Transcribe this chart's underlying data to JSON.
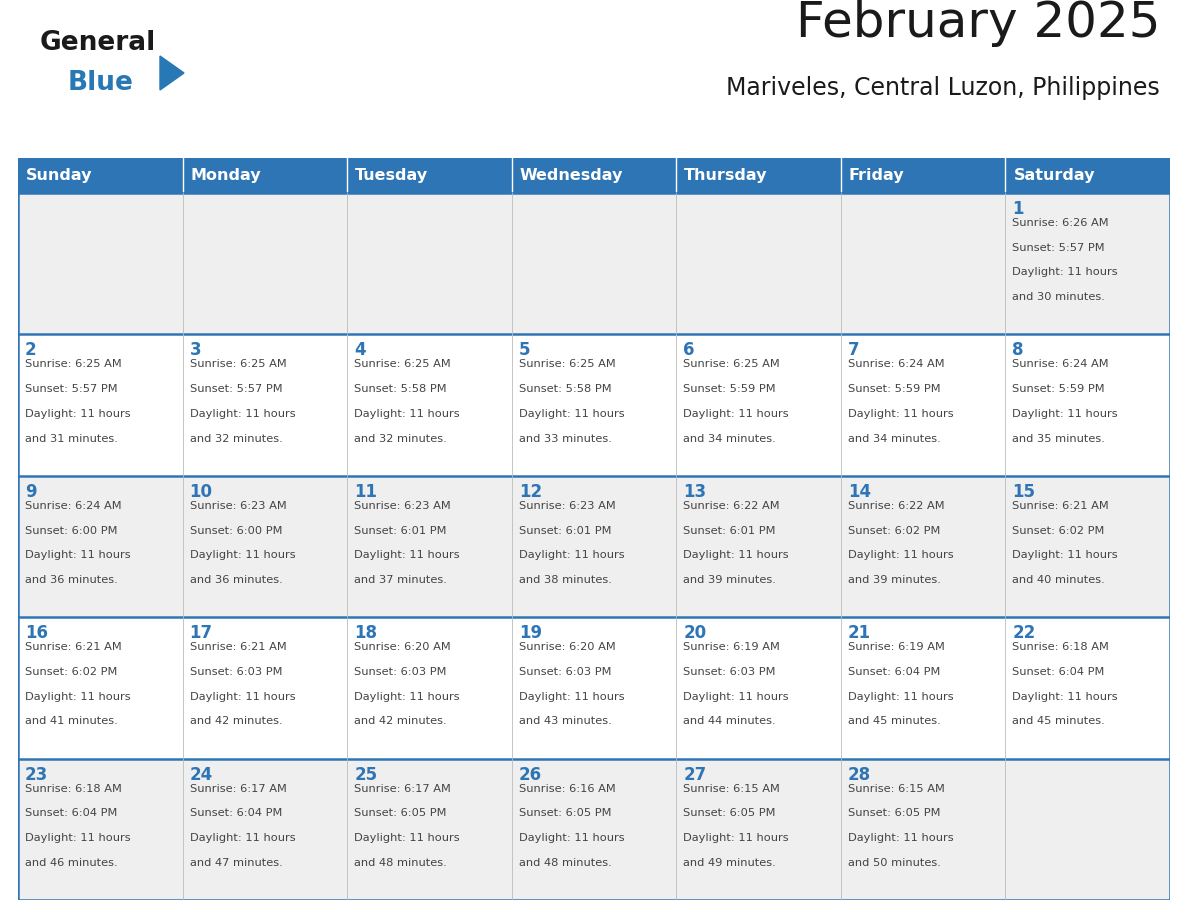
{
  "title": "February 2025",
  "subtitle": "Mariveles, Central Luzon, Philippines",
  "header_bg": "#2E75B6",
  "header_text_color": "#FFFFFF",
  "cell_bg_light": "#EFEFEF",
  "cell_bg_white": "#FFFFFF",
  "cell_border_color": "#2E75B6",
  "day_number_color": "#2E75B6",
  "text_color": "#444444",
  "logo_general_color": "#1a1a1a",
  "logo_blue_color": "#2778B5",
  "days_of_week": [
    "Sunday",
    "Monday",
    "Tuesday",
    "Wednesday",
    "Thursday",
    "Friday",
    "Saturday"
  ],
  "weeks": [
    [
      {
        "day": null,
        "data": null
      },
      {
        "day": null,
        "data": null
      },
      {
        "day": null,
        "data": null
      },
      {
        "day": null,
        "data": null
      },
      {
        "day": null,
        "data": null
      },
      {
        "day": null,
        "data": null
      },
      {
        "day": 1,
        "data": "Sunrise: 6:26 AM\nSunset: 5:57 PM\nDaylight: 11 hours\nand 30 minutes."
      }
    ],
    [
      {
        "day": 2,
        "data": "Sunrise: 6:25 AM\nSunset: 5:57 PM\nDaylight: 11 hours\nand 31 minutes."
      },
      {
        "day": 3,
        "data": "Sunrise: 6:25 AM\nSunset: 5:57 PM\nDaylight: 11 hours\nand 32 minutes."
      },
      {
        "day": 4,
        "data": "Sunrise: 6:25 AM\nSunset: 5:58 PM\nDaylight: 11 hours\nand 32 minutes."
      },
      {
        "day": 5,
        "data": "Sunrise: 6:25 AM\nSunset: 5:58 PM\nDaylight: 11 hours\nand 33 minutes."
      },
      {
        "day": 6,
        "data": "Sunrise: 6:25 AM\nSunset: 5:59 PM\nDaylight: 11 hours\nand 34 minutes."
      },
      {
        "day": 7,
        "data": "Sunrise: 6:24 AM\nSunset: 5:59 PM\nDaylight: 11 hours\nand 34 minutes."
      },
      {
        "day": 8,
        "data": "Sunrise: 6:24 AM\nSunset: 5:59 PM\nDaylight: 11 hours\nand 35 minutes."
      }
    ],
    [
      {
        "day": 9,
        "data": "Sunrise: 6:24 AM\nSunset: 6:00 PM\nDaylight: 11 hours\nand 36 minutes."
      },
      {
        "day": 10,
        "data": "Sunrise: 6:23 AM\nSunset: 6:00 PM\nDaylight: 11 hours\nand 36 minutes."
      },
      {
        "day": 11,
        "data": "Sunrise: 6:23 AM\nSunset: 6:01 PM\nDaylight: 11 hours\nand 37 minutes."
      },
      {
        "day": 12,
        "data": "Sunrise: 6:23 AM\nSunset: 6:01 PM\nDaylight: 11 hours\nand 38 minutes."
      },
      {
        "day": 13,
        "data": "Sunrise: 6:22 AM\nSunset: 6:01 PM\nDaylight: 11 hours\nand 39 minutes."
      },
      {
        "day": 14,
        "data": "Sunrise: 6:22 AM\nSunset: 6:02 PM\nDaylight: 11 hours\nand 39 minutes."
      },
      {
        "day": 15,
        "data": "Sunrise: 6:21 AM\nSunset: 6:02 PM\nDaylight: 11 hours\nand 40 minutes."
      }
    ],
    [
      {
        "day": 16,
        "data": "Sunrise: 6:21 AM\nSunset: 6:02 PM\nDaylight: 11 hours\nand 41 minutes."
      },
      {
        "day": 17,
        "data": "Sunrise: 6:21 AM\nSunset: 6:03 PM\nDaylight: 11 hours\nand 42 minutes."
      },
      {
        "day": 18,
        "data": "Sunrise: 6:20 AM\nSunset: 6:03 PM\nDaylight: 11 hours\nand 42 minutes."
      },
      {
        "day": 19,
        "data": "Sunrise: 6:20 AM\nSunset: 6:03 PM\nDaylight: 11 hours\nand 43 minutes."
      },
      {
        "day": 20,
        "data": "Sunrise: 6:19 AM\nSunset: 6:03 PM\nDaylight: 11 hours\nand 44 minutes."
      },
      {
        "day": 21,
        "data": "Sunrise: 6:19 AM\nSunset: 6:04 PM\nDaylight: 11 hours\nand 45 minutes."
      },
      {
        "day": 22,
        "data": "Sunrise: 6:18 AM\nSunset: 6:04 PM\nDaylight: 11 hours\nand 45 minutes."
      }
    ],
    [
      {
        "day": 23,
        "data": "Sunrise: 6:18 AM\nSunset: 6:04 PM\nDaylight: 11 hours\nand 46 minutes."
      },
      {
        "day": 24,
        "data": "Sunrise: 6:17 AM\nSunset: 6:04 PM\nDaylight: 11 hours\nand 47 minutes."
      },
      {
        "day": 25,
        "data": "Sunrise: 6:17 AM\nSunset: 6:05 PM\nDaylight: 11 hours\nand 48 minutes."
      },
      {
        "day": 26,
        "data": "Sunrise: 6:16 AM\nSunset: 6:05 PM\nDaylight: 11 hours\nand 48 minutes."
      },
      {
        "day": 27,
        "data": "Sunrise: 6:15 AM\nSunset: 6:05 PM\nDaylight: 11 hours\nand 49 minutes."
      },
      {
        "day": 28,
        "data": "Sunrise: 6:15 AM\nSunset: 6:05 PM\nDaylight: 11 hours\nand 50 minutes."
      },
      {
        "day": null,
        "data": null
      }
    ]
  ]
}
